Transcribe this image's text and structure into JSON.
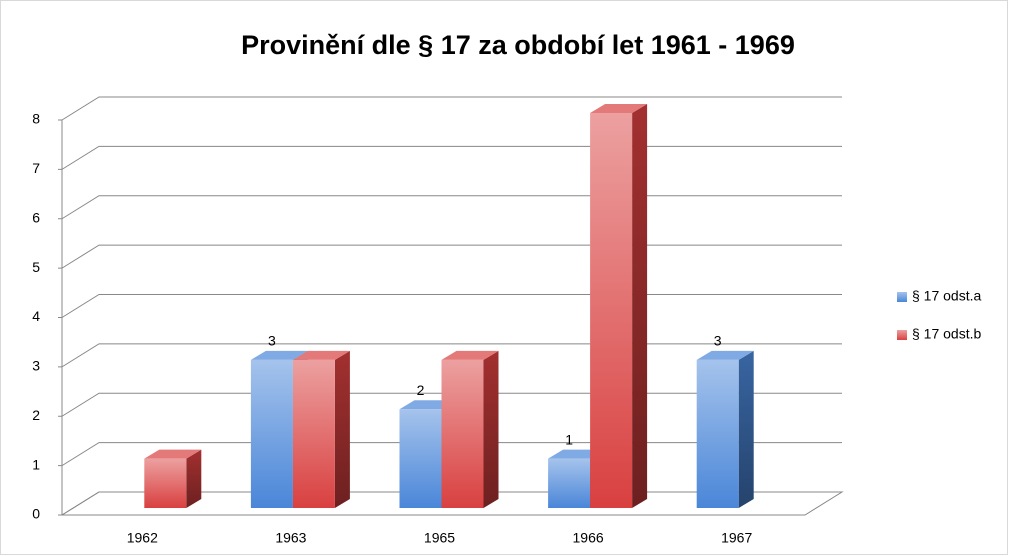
{
  "chart_data": {
    "type": "bar3d",
    "title": "Provinění dle § 17 za období let 1961 - 1969",
    "categories": [
      "1962",
      "1963",
      "1965",
      "1966",
      "1967"
    ],
    "series": [
      {
        "name": "§ 17 odst.a",
        "color": "#4a86d8",
        "values": [
          null,
          3,
          2,
          1,
          3
        ],
        "show_value_labels": true
      },
      {
        "name": "§ 17 odst.b",
        "color": "#d94040",
        "values": [
          1,
          3,
          3,
          8,
          null
        ],
        "show_value_labels": false
      }
    ],
    "ylim": [
      0,
      8
    ],
    "yticks": [
      0,
      1,
      2,
      3,
      4,
      5,
      6,
      7,
      8
    ],
    "grid": true,
    "legend": "right"
  }
}
